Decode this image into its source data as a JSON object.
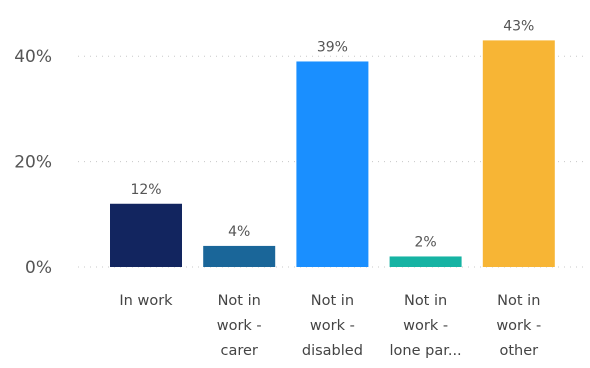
{
  "chart_data": {
    "type": "bar",
    "title": "",
    "xlabel": "",
    "ylabel": "",
    "ylim": [
      0,
      45
    ],
    "yticks": [
      0,
      20,
      40
    ],
    "ytick_labels": [
      "0%",
      "20%",
      "40%"
    ],
    "grid": true,
    "legend": "none",
    "categories": [
      [
        "In work"
      ],
      [
        "Not in",
        "work -",
        "carer"
      ],
      [
        "Not in",
        "work -",
        "disabled"
      ],
      [
        "Not in",
        "work -",
        "lone par..."
      ],
      [
        "Not in",
        "work -",
        "other"
      ]
    ],
    "values": [
      12,
      4,
      39,
      2,
      43
    ],
    "value_labels": [
      "12%",
      "4%",
      "39%",
      "2%",
      "43%"
    ],
    "colors": [
      "#12255F",
      "#1A6699",
      "#1A8FFF",
      "#16B3A3",
      "#F7B535"
    ]
  }
}
